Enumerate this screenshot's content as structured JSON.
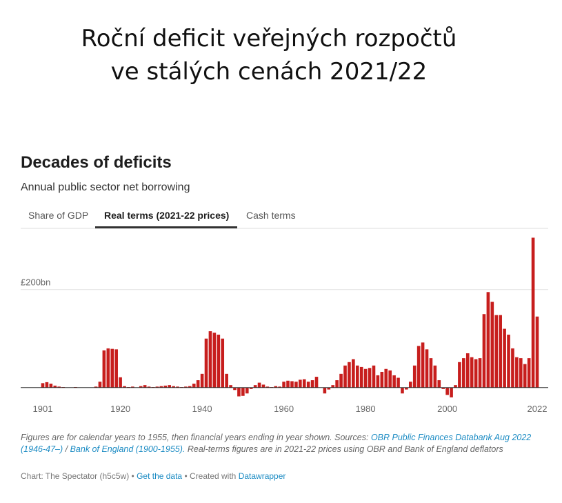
{
  "slide_title": [
    "Roční deficit veřejných rozpočtů",
    "ve stálých cenách 2021/22"
  ],
  "chart_title": "Decades of deficits",
  "subtitle": "Annual public sector net borrowing",
  "tabs": [
    "Share of GDP",
    "Real terms (2021-22 prices)",
    "Cash terms"
  ],
  "chart_data": {
    "type": "bar",
    "color": "#c71e1d",
    "x": [
      1901,
      1902,
      1903,
      1904,
      1905,
      1906,
      1907,
      1908,
      1909,
      1910,
      1911,
      1912,
      1913,
      1914,
      1915,
      1916,
      1917,
      1918,
      1919,
      1920,
      1921,
      1922,
      1923,
      1924,
      1925,
      1926,
      1927,
      1928,
      1929,
      1930,
      1931,
      1932,
      1933,
      1934,
      1935,
      1936,
      1937,
      1938,
      1939,
      1940,
      1941,
      1942,
      1943,
      1944,
      1945,
      1946,
      1947,
      1948,
      1949,
      1950,
      1951,
      1952,
      1953,
      1954,
      1955,
      1956,
      1957,
      1958,
      1959,
      1960,
      1961,
      1962,
      1963,
      1964,
      1965,
      1966,
      1967,
      1968,
      1969,
      1970,
      1971,
      1972,
      1973,
      1974,
      1975,
      1976,
      1977,
      1978,
      1979,
      1980,
      1981,
      1982,
      1983,
      1984,
      1985,
      1986,
      1987,
      1988,
      1989,
      1990,
      1991,
      1992,
      1993,
      1994,
      1995,
      1996,
      1997,
      1998,
      1999,
      2000,
      2001,
      2002,
      2003,
      2004,
      2005,
      2006,
      2007,
      2008,
      2009,
      2010,
      2011,
      2012,
      2013,
      2014,
      2015,
      2016,
      2017,
      2018,
      2019,
      2020,
      2021,
      2022
    ],
    "values": [
      9,
      11,
      8,
      4,
      2,
      1,
      0,
      0,
      1,
      0,
      0,
      0,
      0,
      2,
      12,
      76,
      80,
      79,
      78,
      21,
      3,
      1,
      2,
      0,
      3,
      5,
      2,
      1,
      2,
      3,
      4,
      5,
      3,
      2,
      1,
      2,
      3,
      8,
      15,
      28,
      100,
      115,
      112,
      108,
      100,
      28,
      5,
      -5,
      -18,
      -17,
      -12,
      -3,
      5,
      10,
      6,
      2,
      1,
      3,
      2,
      12,
      14,
      13,
      12,
      16,
      17,
      12,
      15,
      22,
      0,
      -12,
      -4,
      5,
      15,
      28,
      45,
      52,
      58,
      45,
      42,
      38,
      40,
      45,
      25,
      32,
      38,
      35,
      25,
      20,
      -12,
      -4,
      12,
      45,
      85,
      92,
      78,
      60,
      45,
      15,
      -3,
      -15,
      -20,
      5,
      52,
      60,
      70,
      62,
      58,
      60,
      150,
      195,
      175,
      148,
      148,
      120,
      108,
      80,
      62,
      60,
      48,
      60,
      306,
      145
    ],
    "xlim": [
      1901,
      2022
    ],
    "xticks": [
      1901,
      1920,
      1940,
      1960,
      1980,
      2000,
      2022
    ],
    "ylim": [
      -30,
      325
    ],
    "yticks": [
      {
        "value": 200,
        "label": "£200bn"
      }
    ],
    "grid": true
  },
  "notes": [
    "Figures are for calendar years to 1955, then financial years ending in year shown. Sources: ",
    "OBR Public Finances Databank Aug 2022 (1946-47–)",
    " / ",
    "Bank of England (1900-1955).",
    " Real-terms figures are in 2021-22 prices using OBR and Bank of England deflators"
  ],
  "credit": [
    "Chart: The Spectator (h5c5w)",
    " • ",
    "Get the data",
    " • Created with ",
    "Datawrapper"
  ]
}
